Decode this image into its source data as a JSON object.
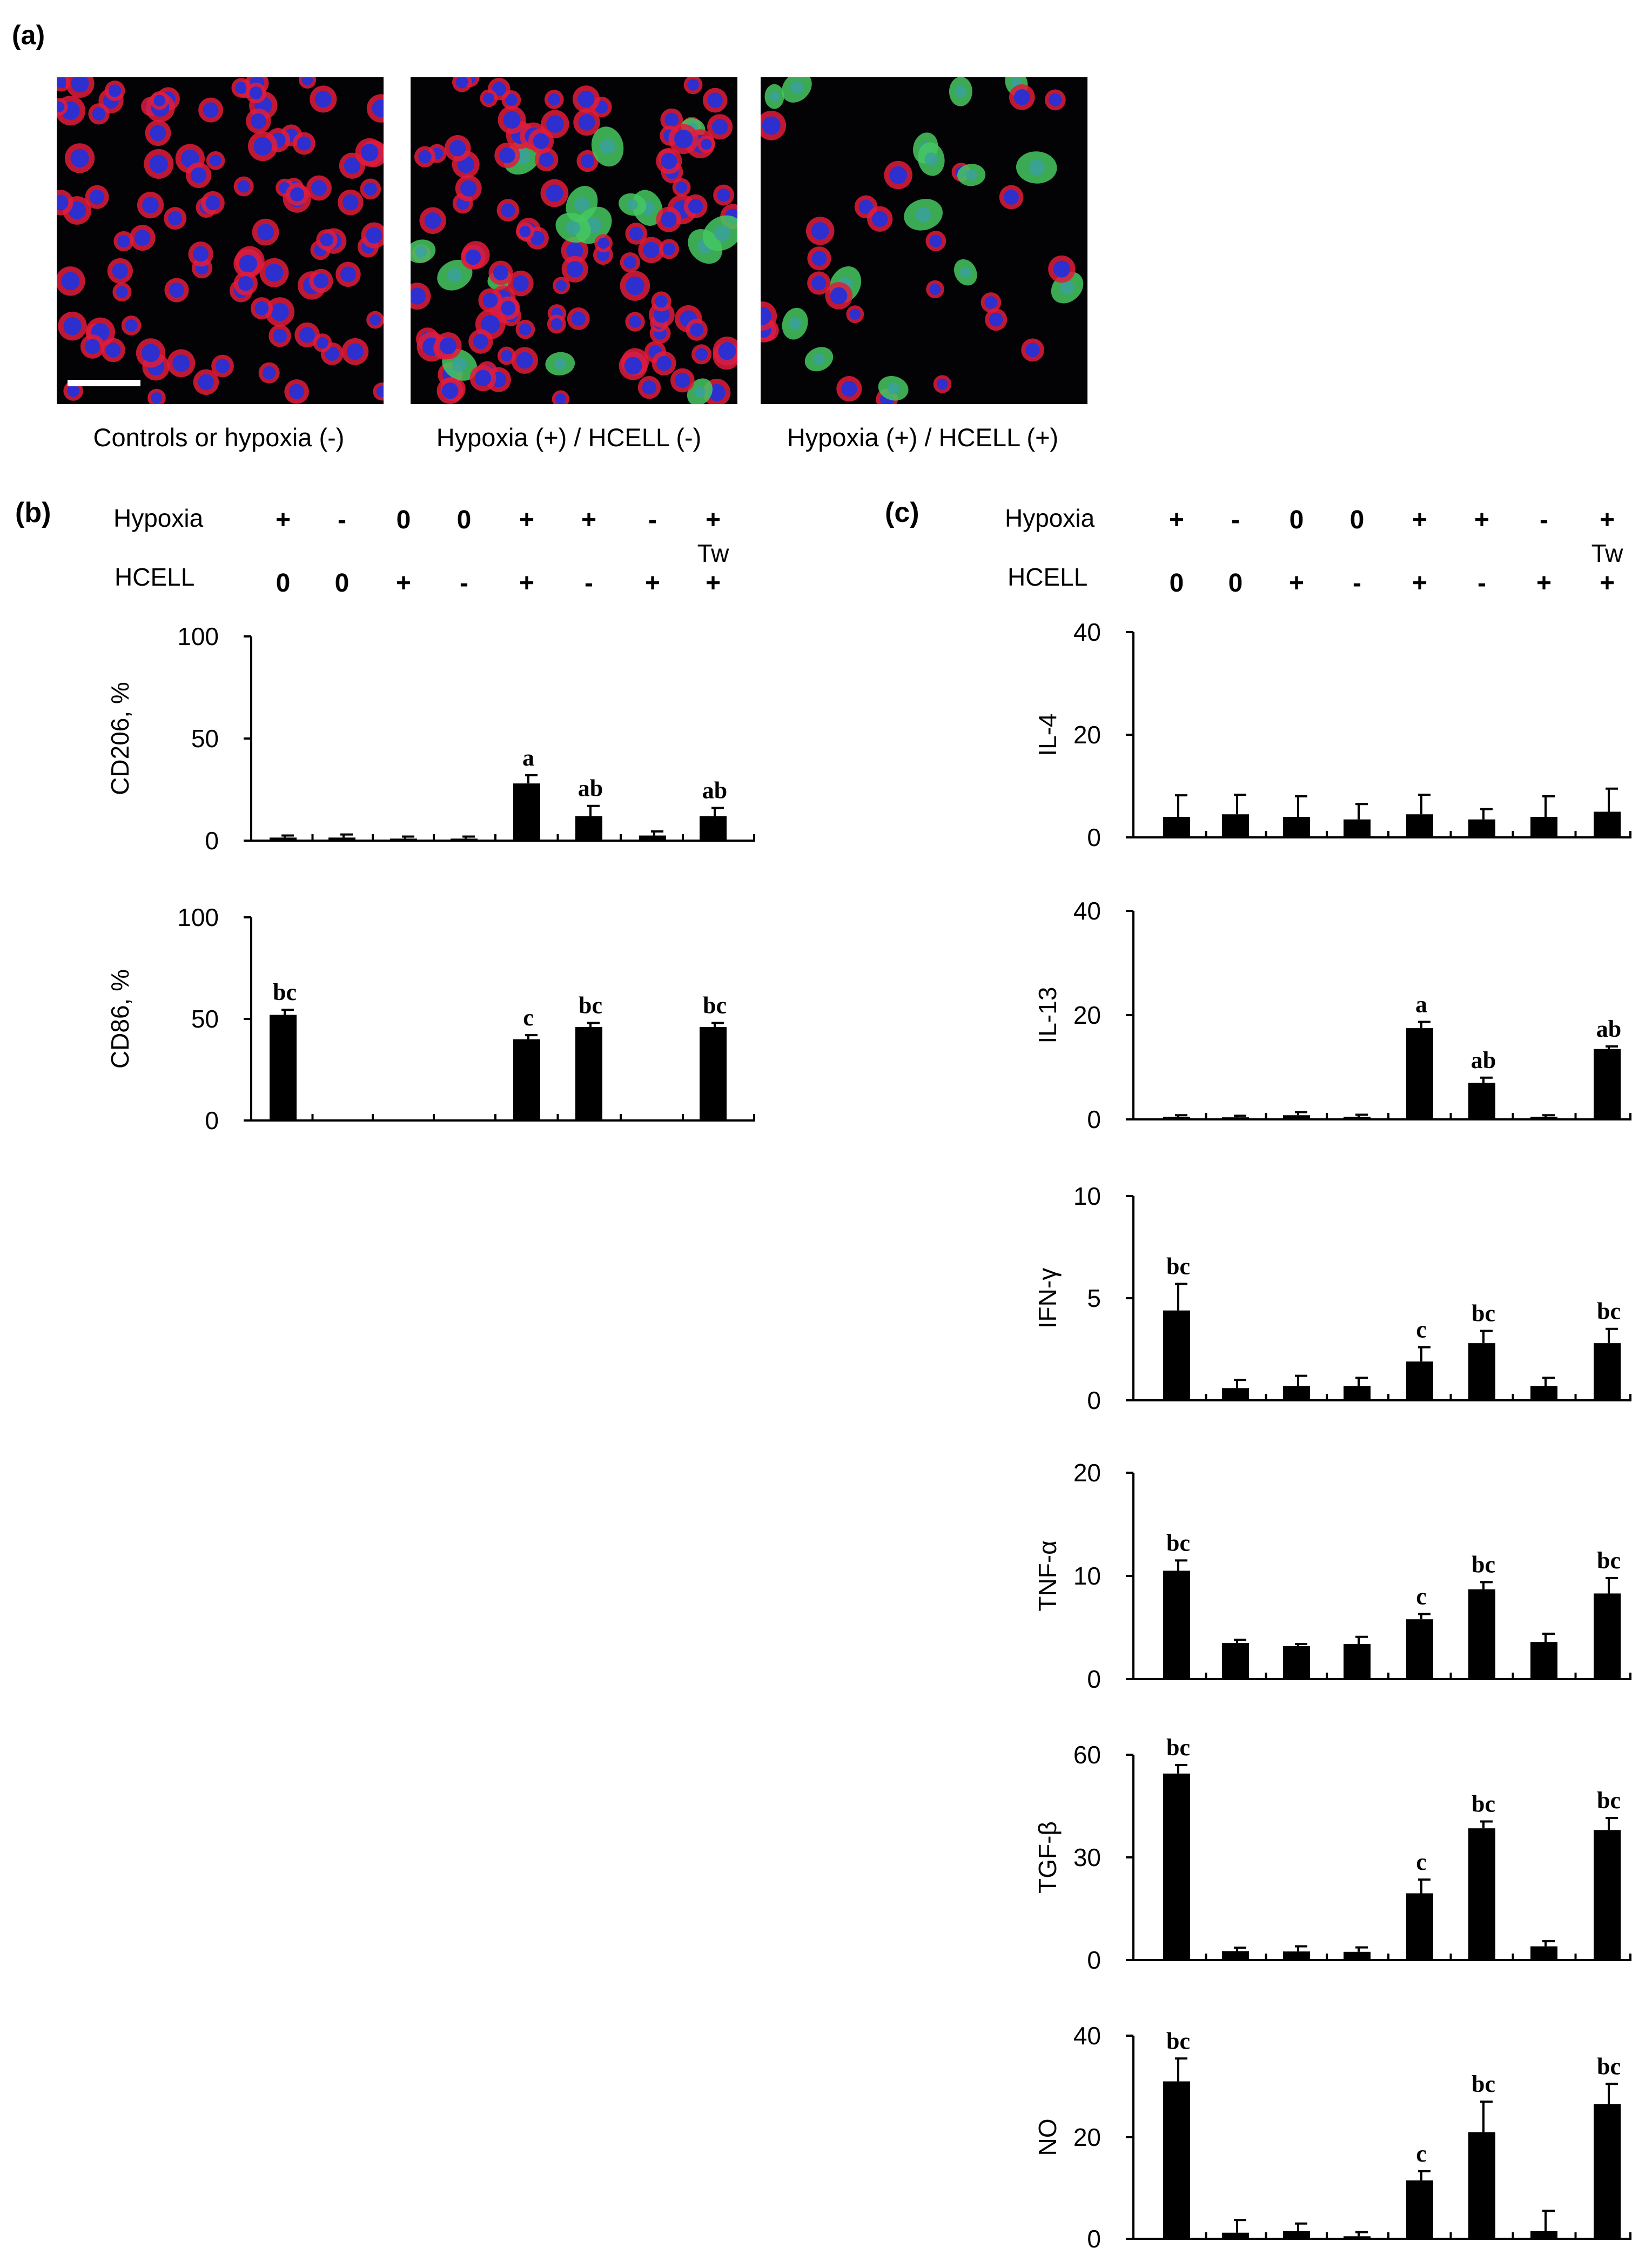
{
  "panel_labels": {
    "a": "(a)",
    "b": "(b)",
    "c": "(c)"
  },
  "micrographs": [
    {
      "caption": "Controls or hypoxia (-)"
    },
    {
      "caption": "Hypoxia (+) / HCELL (-)"
    },
    {
      "caption": "Hypoxia (+) / HCELL (+)"
    }
  ],
  "conditions": {
    "row_labels": [
      "Hypoxia",
      "HCELL"
    ],
    "hypoxia": [
      "+",
      "-",
      "0",
      "0",
      "+",
      "+",
      "-",
      "+"
    ],
    "hcell": [
      "0",
      "0",
      "+",
      "-",
      "+",
      "-",
      "+",
      "+"
    ],
    "extra_label": "Tw"
  },
  "colors": {
    "bar": "#000000",
    "nucleus": "#2530d8",
    "membrane": "#e01c3c",
    "gfp": "#45c862"
  },
  "chart_data": [
    {
      "type": "bar",
      "panel": "b",
      "ylabel": "CD206, %",
      "ylim": [
        0,
        100
      ],
      "yticks": [
        0,
        50,
        100
      ],
      "values": [
        1.5,
        1.5,
        1,
        1,
        28,
        12,
        2.5,
        12
      ],
      "errors": [
        1,
        1.5,
        1,
        1,
        4,
        5,
        2,
        4
      ],
      "annotations": [
        "",
        "",
        "",
        "",
        "a",
        "ab",
        "",
        "ab"
      ]
    },
    {
      "type": "bar",
      "panel": "b",
      "ylabel": "CD86, %",
      "ylim": [
        0,
        100
      ],
      "yticks": [
        0,
        50,
        100
      ],
      "values": [
        52,
        0.5,
        0.5,
        0.5,
        40,
        46,
        0.5,
        46
      ],
      "errors": [
        2.5,
        0,
        0,
        0,
        2,
        2,
        0,
        2
      ],
      "annotations": [
        "bc",
        "",
        "",
        "",
        "c",
        "bc",
        "",
        "bc"
      ]
    },
    {
      "type": "bar",
      "panel": "c",
      "ylabel": "IL-4",
      "ylim": [
        0,
        40
      ],
      "yticks": [
        0,
        20,
        40
      ],
      "values": [
        4,
        4.5,
        4,
        3.5,
        4.5,
        3.5,
        4,
        5
      ],
      "errors": [
        4.2,
        3.8,
        4,
        3,
        3.8,
        2,
        4,
        4.5
      ],
      "annotations": [
        "",
        "",
        "",
        "",
        "",
        "",
        "",
        ""
      ]
    },
    {
      "type": "bar",
      "panel": "c",
      "ylabel": "IL-13",
      "ylim": [
        0,
        40
      ],
      "yticks": [
        0,
        20,
        40
      ],
      "values": [
        0.5,
        0.4,
        0.8,
        0.5,
        17.5,
        7,
        0.5,
        13.5
      ],
      "errors": [
        0.3,
        0.3,
        0.6,
        0.4,
        1.2,
        1,
        0.3,
        0.5
      ],
      "annotations": [
        "",
        "",
        "",
        "",
        "a",
        "ab",
        "",
        "ab"
      ]
    },
    {
      "type": "bar",
      "panel": "c",
      "ylabel": "IFN-γ",
      "ylim": [
        0,
        10
      ],
      "yticks": [
        0,
        5,
        10
      ],
      "values": [
        4.4,
        0.6,
        0.7,
        0.7,
        1.9,
        2.8,
        0.7,
        2.8
      ],
      "errors": [
        1.3,
        0.4,
        0.5,
        0.4,
        0.7,
        0.6,
        0.4,
        0.7
      ],
      "annotations": [
        "bc",
        "",
        "",
        "",
        "c",
        "bc",
        "",
        "bc"
      ]
    },
    {
      "type": "bar",
      "panel": "c",
      "ylabel": "TNF-α",
      "ylim": [
        0,
        20
      ],
      "yticks": [
        0,
        10,
        20
      ],
      "values": [
        10.5,
        3.5,
        3.2,
        3.4,
        5.8,
        8.7,
        3.6,
        8.3
      ],
      "errors": [
        1,
        0.3,
        0.2,
        0.7,
        0.5,
        0.7,
        0.8,
        1.5
      ],
      "annotations": [
        "bc",
        "",
        "",
        "",
        "c",
        "bc",
        "",
        "bc"
      ]
    },
    {
      "type": "bar",
      "panel": "c",
      "ylabel": "TGF-β",
      "ylim": [
        0,
        60
      ],
      "yticks": [
        0,
        30,
        60
      ],
      "values": [
        54.5,
        2.6,
        2.5,
        2.4,
        19.5,
        38.5,
        4,
        38
      ],
      "errors": [
        2.5,
        1,
        1.5,
        1.3,
        4,
        2,
        1.5,
        3.5
      ],
      "annotations": [
        "bc",
        "",
        "",
        "",
        "c",
        "bc",
        "",
        "bc"
      ]
    },
    {
      "type": "bar",
      "panel": "c",
      "ylabel": "NO",
      "ylim": [
        0,
        40
      ],
      "yticks": [
        0,
        20,
        40
      ],
      "values": [
        31,
        1.2,
        1.5,
        0.5,
        11.5,
        21,
        1.5,
        26.5
      ],
      "errors": [
        4.5,
        2.5,
        1.5,
        0.8,
        1.8,
        6,
        4,
        4
      ],
      "annotations": [
        "bc",
        "",
        "",
        "",
        "c",
        "bc",
        "",
        "bc"
      ]
    }
  ]
}
